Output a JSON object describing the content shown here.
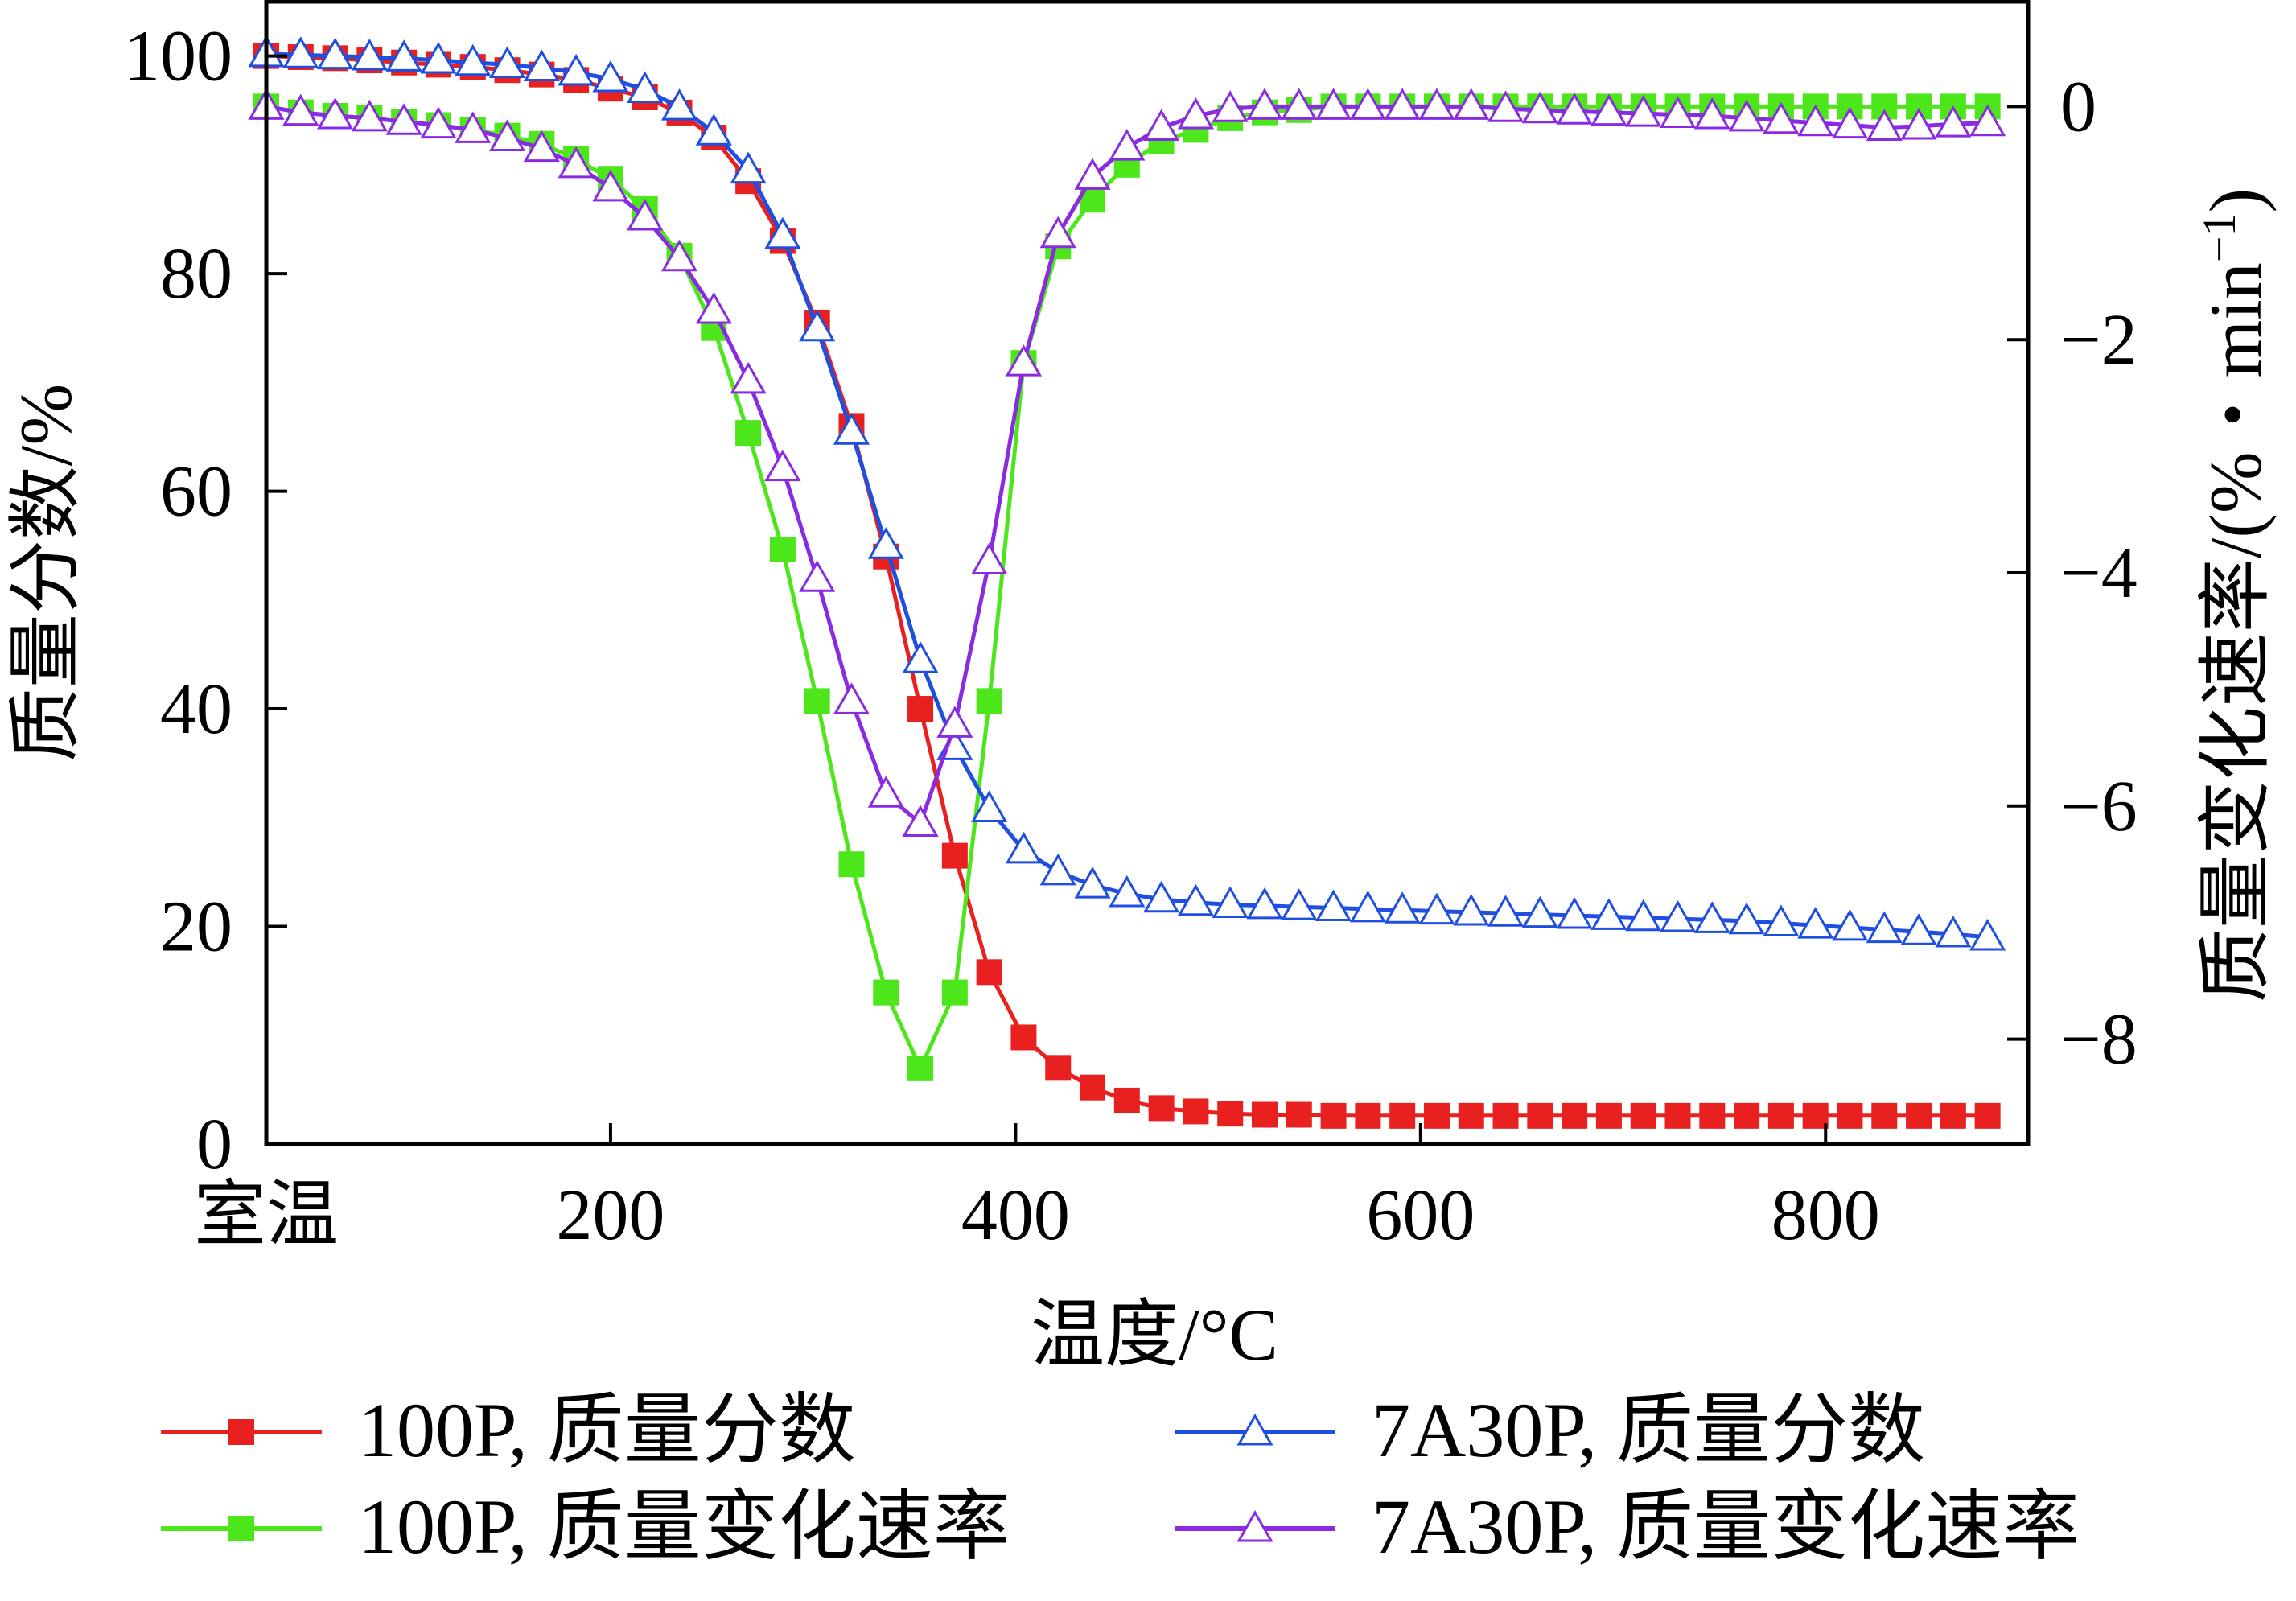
{
  "chart_data": {
    "type": "line",
    "xlabel": "温度/°C",
    "ylabel_left": "质量分数/%",
    "ylabel_right": "质量变化速率/(%・min",
    "ylabel_right_sup": "−1",
    "ylabel_right_close": ")",
    "x_first_tick_label": "室温",
    "x_ticks": [
      "200",
      "400",
      "600",
      "800"
    ],
    "x_tick_values": [
      200,
      400,
      600,
      800
    ],
    "xlim": [
      30,
      900
    ],
    "ylim_left": [
      0,
      105
    ],
    "y_left_ticks": [
      "0",
      "20",
      "40",
      "60",
      "80",
      "100"
    ],
    "ylim_right": [
      -8.9,
      0.9
    ],
    "y_right_ticks": [
      "−8",
      "−6",
      "−4",
      "−2",
      "0"
    ],
    "y_right_tick_values": [
      -8,
      -6,
      -4,
      -2,
      0
    ],
    "grid": false,
    "legend_position": "bottom",
    "x": [
      30,
      47,
      64,
      81,
      98,
      115,
      132,
      149,
      166,
      183,
      200,
      217,
      234,
      251,
      268,
      285,
      302,
      319,
      336,
      353,
      370,
      387,
      404,
      421,
      438,
      455,
      472,
      489,
      506,
      523,
      540,
      557,
      574,
      591,
      608,
      625,
      642,
      659,
      676,
      693,
      710,
      727,
      744,
      761,
      778,
      795,
      812,
      829,
      846,
      863,
      880
    ],
    "series": [
      {
        "name": "100P, 质量分数",
        "axis": "left",
        "color": "#e8201f",
        "marker": "square",
        "values": [
          100,
          99.9,
          99.8,
          99.6,
          99.4,
          99.2,
          99,
          98.7,
          98.3,
          97.8,
          97,
          96.2,
          94.8,
          92.5,
          88.5,
          83,
          75.5,
          66,
          54,
          40,
          26.5,
          15.8,
          9.8,
          7,
          5.2,
          4,
          3.3,
          3,
          2.8,
          2.7,
          2.7,
          2.6,
          2.6,
          2.6,
          2.6,
          2.6,
          2.6,
          2.6,
          2.6,
          2.6,
          2.6,
          2.6,
          2.6,
          2.6,
          2.6,
          2.6,
          2.6,
          2.6,
          2.6,
          2.6,
          2.6
        ]
      },
      {
        "name": "100P, 质量变化速率",
        "axis": "right",
        "color": "#4ce61a",
        "marker": "square",
        "values": [
          0,
          -0.05,
          -0.08,
          -0.1,
          -0.13,
          -0.16,
          -0.2,
          -0.25,
          -0.32,
          -0.45,
          -0.62,
          -0.88,
          -1.28,
          -1.9,
          -2.8,
          -3.8,
          -5.1,
          -6.5,
          -7.6,
          -8.25,
          -7.6,
          -5.1,
          -2.2,
          -1.2,
          -0.8,
          -0.5,
          -0.3,
          -0.2,
          -0.1,
          -0.05,
          -0.03,
          0,
          0,
          0,
          0,
          0,
          0,
          0,
          0,
          0,
          0,
          0,
          0,
          0,
          0,
          0,
          0,
          0,
          0,
          0,
          0
        ]
      },
      {
        "name": "7A30P, 质量分数",
        "axis": "left",
        "color": "#1f4fe0",
        "marker": "triangle",
        "values": [
          100.2,
          100.1,
          100,
          99.9,
          99.8,
          99.6,
          99.4,
          99.2,
          98.9,
          98.5,
          97.9,
          96.9,
          95.3,
          93,
          89.5,
          83.5,
          75,
          65.5,
          55,
          44.5,
          36.5,
          30.8,
          27,
          25,
          23.8,
          23,
          22.5,
          22.2,
          22,
          21.9,
          21.8,
          21.7,
          21.6,
          21.5,
          21.4,
          21.3,
          21.2,
          21.1,
          21,
          20.9,
          20.8,
          20.7,
          20.6,
          20.5,
          20.3,
          20.1,
          19.9,
          19.7,
          19.5,
          19.3,
          19
        ]
      },
      {
        "name": "7A30P, 质量变化速率",
        "axis": "right",
        "color": "#8a2be2",
        "marker": "triangle",
        "values": [
          0,
          -0.05,
          -0.08,
          -0.1,
          -0.13,
          -0.16,
          -0.2,
          -0.27,
          -0.36,
          -0.5,
          -0.7,
          -0.95,
          -1.3,
          -1.75,
          -2.35,
          -3.1,
          -4.05,
          -5.1,
          -5.9,
          -6.15,
          -5.3,
          -3.9,
          -2.2,
          -1.1,
          -0.6,
          -0.35,
          -0.18,
          -0.08,
          -0.02,
          0,
          0,
          0,
          0,
          0,
          0,
          0,
          -0.02,
          -0.03,
          -0.04,
          -0.05,
          -0.06,
          -0.07,
          -0.08,
          -0.1,
          -0.12,
          -0.14,
          -0.16,
          -0.18,
          -0.17,
          -0.15,
          -0.14
        ]
      }
    ]
  }
}
